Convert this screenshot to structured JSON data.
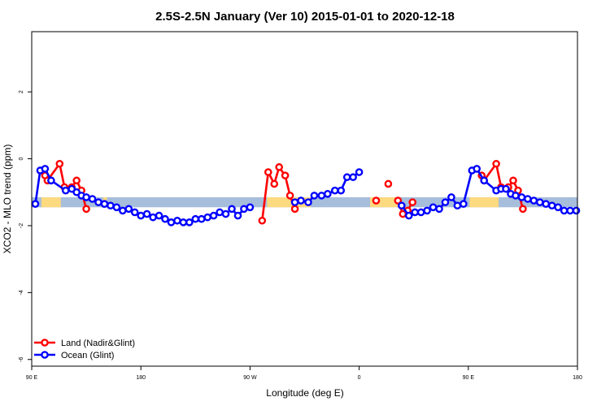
{
  "chart_data": {
    "type": "line",
    "title": "2.5S-2.5N January (Ver 10)   2015-01-01 to 2020-12-18",
    "xlabel": "Longitude (deg E)",
    "ylabel": "XCO2 - MLO trend (ppm)",
    "xlim": [
      90,
      540
    ],
    "ylim": [
      -6.2,
      3.8
    ],
    "xticks": [
      {
        "value": 90,
        "label": "90 E"
      },
      {
        "value": 180,
        "label": "180"
      },
      {
        "value": 270,
        "label": "90 W"
      },
      {
        "value": 360,
        "label": "0"
      },
      {
        "value": 450,
        "label": "90 E"
      },
      {
        "value": 540,
        "label": "180"
      }
    ],
    "yticks": [
      {
        "value": 2,
        "label": "2"
      },
      {
        "value": 0,
        "label": "0"
      },
      {
        "value": -2,
        "label": "-2"
      },
      {
        "value": -4,
        "label": "-4"
      },
      {
        "value": -6,
        "label": "-6"
      }
    ],
    "grid": false,
    "legend": {
      "position": "bottom-left"
    },
    "surface_band": {
      "y_range": [
        -1.45,
        -1.15
      ],
      "ocean_color": "#a6bddb",
      "land_color": "#fdd980",
      "land_segments": [
        [
          98,
          114
        ],
        [
          149,
          152
        ],
        [
          284,
          320
        ],
        [
          369,
          392
        ],
        [
          451,
          475
        ],
        [
          567,
          582
        ]
      ]
    },
    "series": [
      {
        "name": "Land (Nadir&Glint)",
        "color": "#ff0000",
        "points": [
          [
            101,
            -0.5
          ],
          [
            103,
            -0.65
          ],
          [
            113,
            -0.15
          ],
          [
            117,
            -0.85
          ],
          [
            123,
            -0.85
          ],
          [
            127,
            -0.65
          ],
          [
            131,
            -0.95
          ],
          [
            135,
            -1.5
          ],
          null,
          [
            280,
            -1.85
          ],
          [
            285,
            -0.4
          ],
          [
            290,
            -0.75
          ],
          [
            294,
            -0.25
          ],
          [
            299,
            -0.5
          ],
          [
            303,
            -1.1
          ],
          [
            307,
            -1.5
          ],
          null,
          [
            374,
            -1.25
          ],
          null,
          [
            384,
            -0.75
          ],
          null,
          [
            392,
            -1.25
          ],
          [
            396,
            -1.65
          ],
          [
            400,
            -1.55
          ],
          [
            404,
            -1.3
          ],
          null,
          [
            461,
            -0.5
          ],
          [
            463,
            -0.65
          ],
          [
            473,
            -0.15
          ],
          [
            477,
            -0.85
          ],
          [
            483,
            -0.85
          ],
          [
            487,
            -0.65
          ],
          [
            491,
            -0.95
          ],
          [
            495,
            -1.5
          ]
        ]
      },
      {
        "name": "Ocean (Glint)",
        "color": "#0000ff",
        "points": [
          [
            93,
            -1.35
          ],
          [
            97,
            -0.35
          ],
          [
            101,
            -0.3
          ],
          [
            106,
            -0.65
          ],
          [
            118,
            -0.95
          ],
          [
            123,
            -0.9
          ],
          [
            127,
            -1.0
          ],
          [
            131,
            -1.1
          ],
          [
            135,
            -1.15
          ],
          [
            140,
            -1.2
          ],
          [
            145,
            -1.3
          ],
          [
            150,
            -1.35
          ],
          [
            155,
            -1.4
          ],
          [
            160,
            -1.45
          ],
          [
            165,
            -1.55
          ],
          [
            170,
            -1.5
          ],
          [
            175,
            -1.6
          ],
          [
            180,
            -1.7
          ],
          [
            185,
            -1.65
          ],
          [
            190,
            -1.75
          ],
          [
            195,
            -1.7
          ],
          [
            200,
            -1.8
          ],
          [
            205,
            -1.9
          ],
          [
            210,
            -1.85
          ],
          [
            215,
            -1.9
          ],
          [
            220,
            -1.9
          ],
          [
            225,
            -1.8
          ],
          [
            230,
            -1.8
          ],
          [
            235,
            -1.75
          ],
          [
            240,
            -1.7
          ],
          [
            245,
            -1.6
          ],
          [
            250,
            -1.65
          ],
          [
            255,
            -1.5
          ],
          [
            260,
            -1.7
          ],
          [
            265,
            -1.5
          ],
          [
            270,
            -1.45
          ],
          null,
          [
            307,
            -1.3
          ],
          [
            312,
            -1.25
          ],
          [
            318,
            -1.3
          ],
          [
            323,
            -1.1
          ],
          [
            329,
            -1.1
          ],
          [
            334,
            -1.05
          ],
          [
            340,
            -0.95
          ],
          [
            345,
            -0.95
          ],
          [
            350,
            -0.55
          ],
          [
            355,
            -0.55
          ],
          [
            360,
            -0.4
          ],
          null,
          [
            395,
            -1.4
          ],
          [
            401,
            -1.7
          ],
          [
            406,
            -1.6
          ],
          [
            411,
            -1.6
          ],
          [
            416,
            -1.55
          ],
          [
            421,
            -1.45
          ],
          [
            426,
            -1.5
          ],
          [
            431,
            -1.3
          ],
          [
            436,
            -1.15
          ],
          [
            441,
            -1.4
          ],
          [
            446,
            -1.35
          ],
          [
            453,
            -0.35
          ],
          [
            457,
            -0.3
          ],
          [
            463,
            -0.65
          ],
          [
            473,
            -0.95
          ],
          [
            477,
            -0.9
          ],
          [
            481,
            -0.9
          ],
          [
            485,
            -1.05
          ],
          [
            489,
            -1.1
          ],
          [
            494,
            -1.15
          ],
          [
            499,
            -1.2
          ],
          [
            504,
            -1.25
          ],
          [
            509,
            -1.3
          ],
          [
            514,
            -1.35
          ],
          [
            519,
            -1.4
          ],
          [
            524,
            -1.45
          ],
          [
            529,
            -1.55
          ],
          [
            534,
            -1.55
          ],
          [
            539,
            -1.55
          ]
        ]
      }
    ]
  }
}
